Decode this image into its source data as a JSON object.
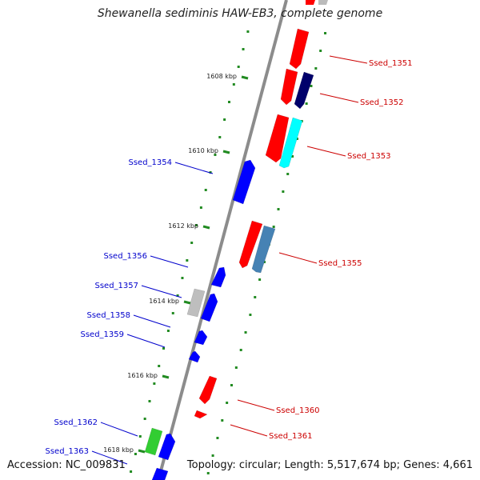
{
  "header": {
    "title": "Shewanella sediminis HAW-EB3, complete genome"
  },
  "footer": {
    "accession": "Accession: NC_009831",
    "stats": "Topology: circular; Length: 5,517,674 bp; Genes: 4,661"
  },
  "ticks": [
    {
      "label": "1608 kbp"
    },
    {
      "label": "1610 kbp"
    },
    {
      "label": "1612 kbp"
    },
    {
      "label": "1614 kbp"
    },
    {
      "label": "1616 kbp"
    },
    {
      "label": "1618 kbp"
    }
  ],
  "genes": [
    {
      "label": "Ssed_1351",
      "color": "#ff0000",
      "strand": "forward"
    },
    {
      "label": "Ssed_1352",
      "color": "#00006b",
      "strand": "forward"
    },
    {
      "label": "Ssed_1353",
      "color": "#00ffff",
      "strand": "forward"
    },
    {
      "label": "Ssed_1354",
      "color": "#0000ff",
      "strand": "reverse"
    },
    {
      "label": "Ssed_1355",
      "color": "#4682b4",
      "strand": "forward"
    },
    {
      "label": "Ssed_1356",
      "color": "#0000ff",
      "strand": "reverse"
    },
    {
      "label": "Ssed_1357",
      "color": "#bebebe",
      "strand": "reverse"
    },
    {
      "label": "Ssed_1358",
      "color": "#0000ff",
      "strand": "reverse"
    },
    {
      "label": "Ssed_1359",
      "color": "#0000ff",
      "strand": "reverse"
    },
    {
      "label": "Ssed_1360",
      "color": "#ff0000",
      "strand": "forward"
    },
    {
      "label": "Ssed_1361",
      "color": "#ff0000",
      "strand": "forward"
    },
    {
      "label": "Ssed_1362",
      "color": "#32cd32",
      "strand": "reverse"
    },
    {
      "label": "Ssed_1363",
      "color": "#0000ff",
      "strand": "reverse"
    }
  ],
  "colors": {
    "backbone": "#8c8c8c",
    "dots": "#228b22",
    "label_forward": "#cc0000",
    "label_reverse": "#0000cc"
  }
}
